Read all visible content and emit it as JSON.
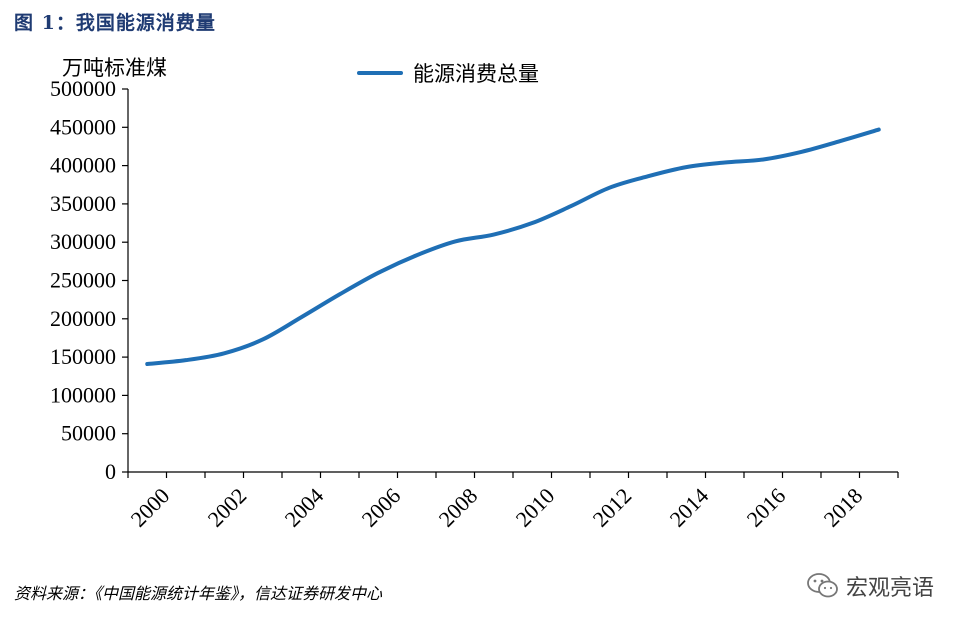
{
  "figure_title": "图 1：我国能源消费量",
  "source": "资料来源：《中国能源统计年鉴》，信达证券研发中心",
  "watermark": {
    "icon": "wechat-icon",
    "label": "宏观亮语"
  },
  "colors": {
    "line": "#1f6fb5",
    "title": "#1f3b73"
  },
  "chart_data": {
    "type": "line",
    "title": "",
    "ylabel": "万吨标准煤",
    "xlabel": "",
    "ylim": [
      0,
      500000
    ],
    "yticks": [
      0,
      50000,
      100000,
      150000,
      200000,
      250000,
      300000,
      350000,
      400000,
      450000,
      500000
    ],
    "xticks": [
      "2000",
      "2002",
      "2004",
      "2006",
      "2008",
      "2010",
      "2012",
      "2014",
      "2016",
      "2018"
    ],
    "legend": "top-center",
    "grid": false,
    "x": [
      "2000",
      "2001",
      "2002",
      "2003",
      "2004",
      "2005",
      "2006",
      "2007",
      "2008",
      "2009",
      "2010",
      "2011",
      "2012",
      "2013",
      "2014",
      "2015",
      "2016",
      "2017",
      "2018",
      "2019"
    ],
    "series": [
      {
        "name": "能源消费总量",
        "values": [
          141000,
          146000,
          155000,
          173000,
          202000,
          232000,
          260000,
          283000,
          301000,
          310000,
          325000,
          347000,
          371000,
          386000,
          398000,
          404000,
          408000,
          418000,
          432000,
          447000
        ]
      }
    ]
  }
}
